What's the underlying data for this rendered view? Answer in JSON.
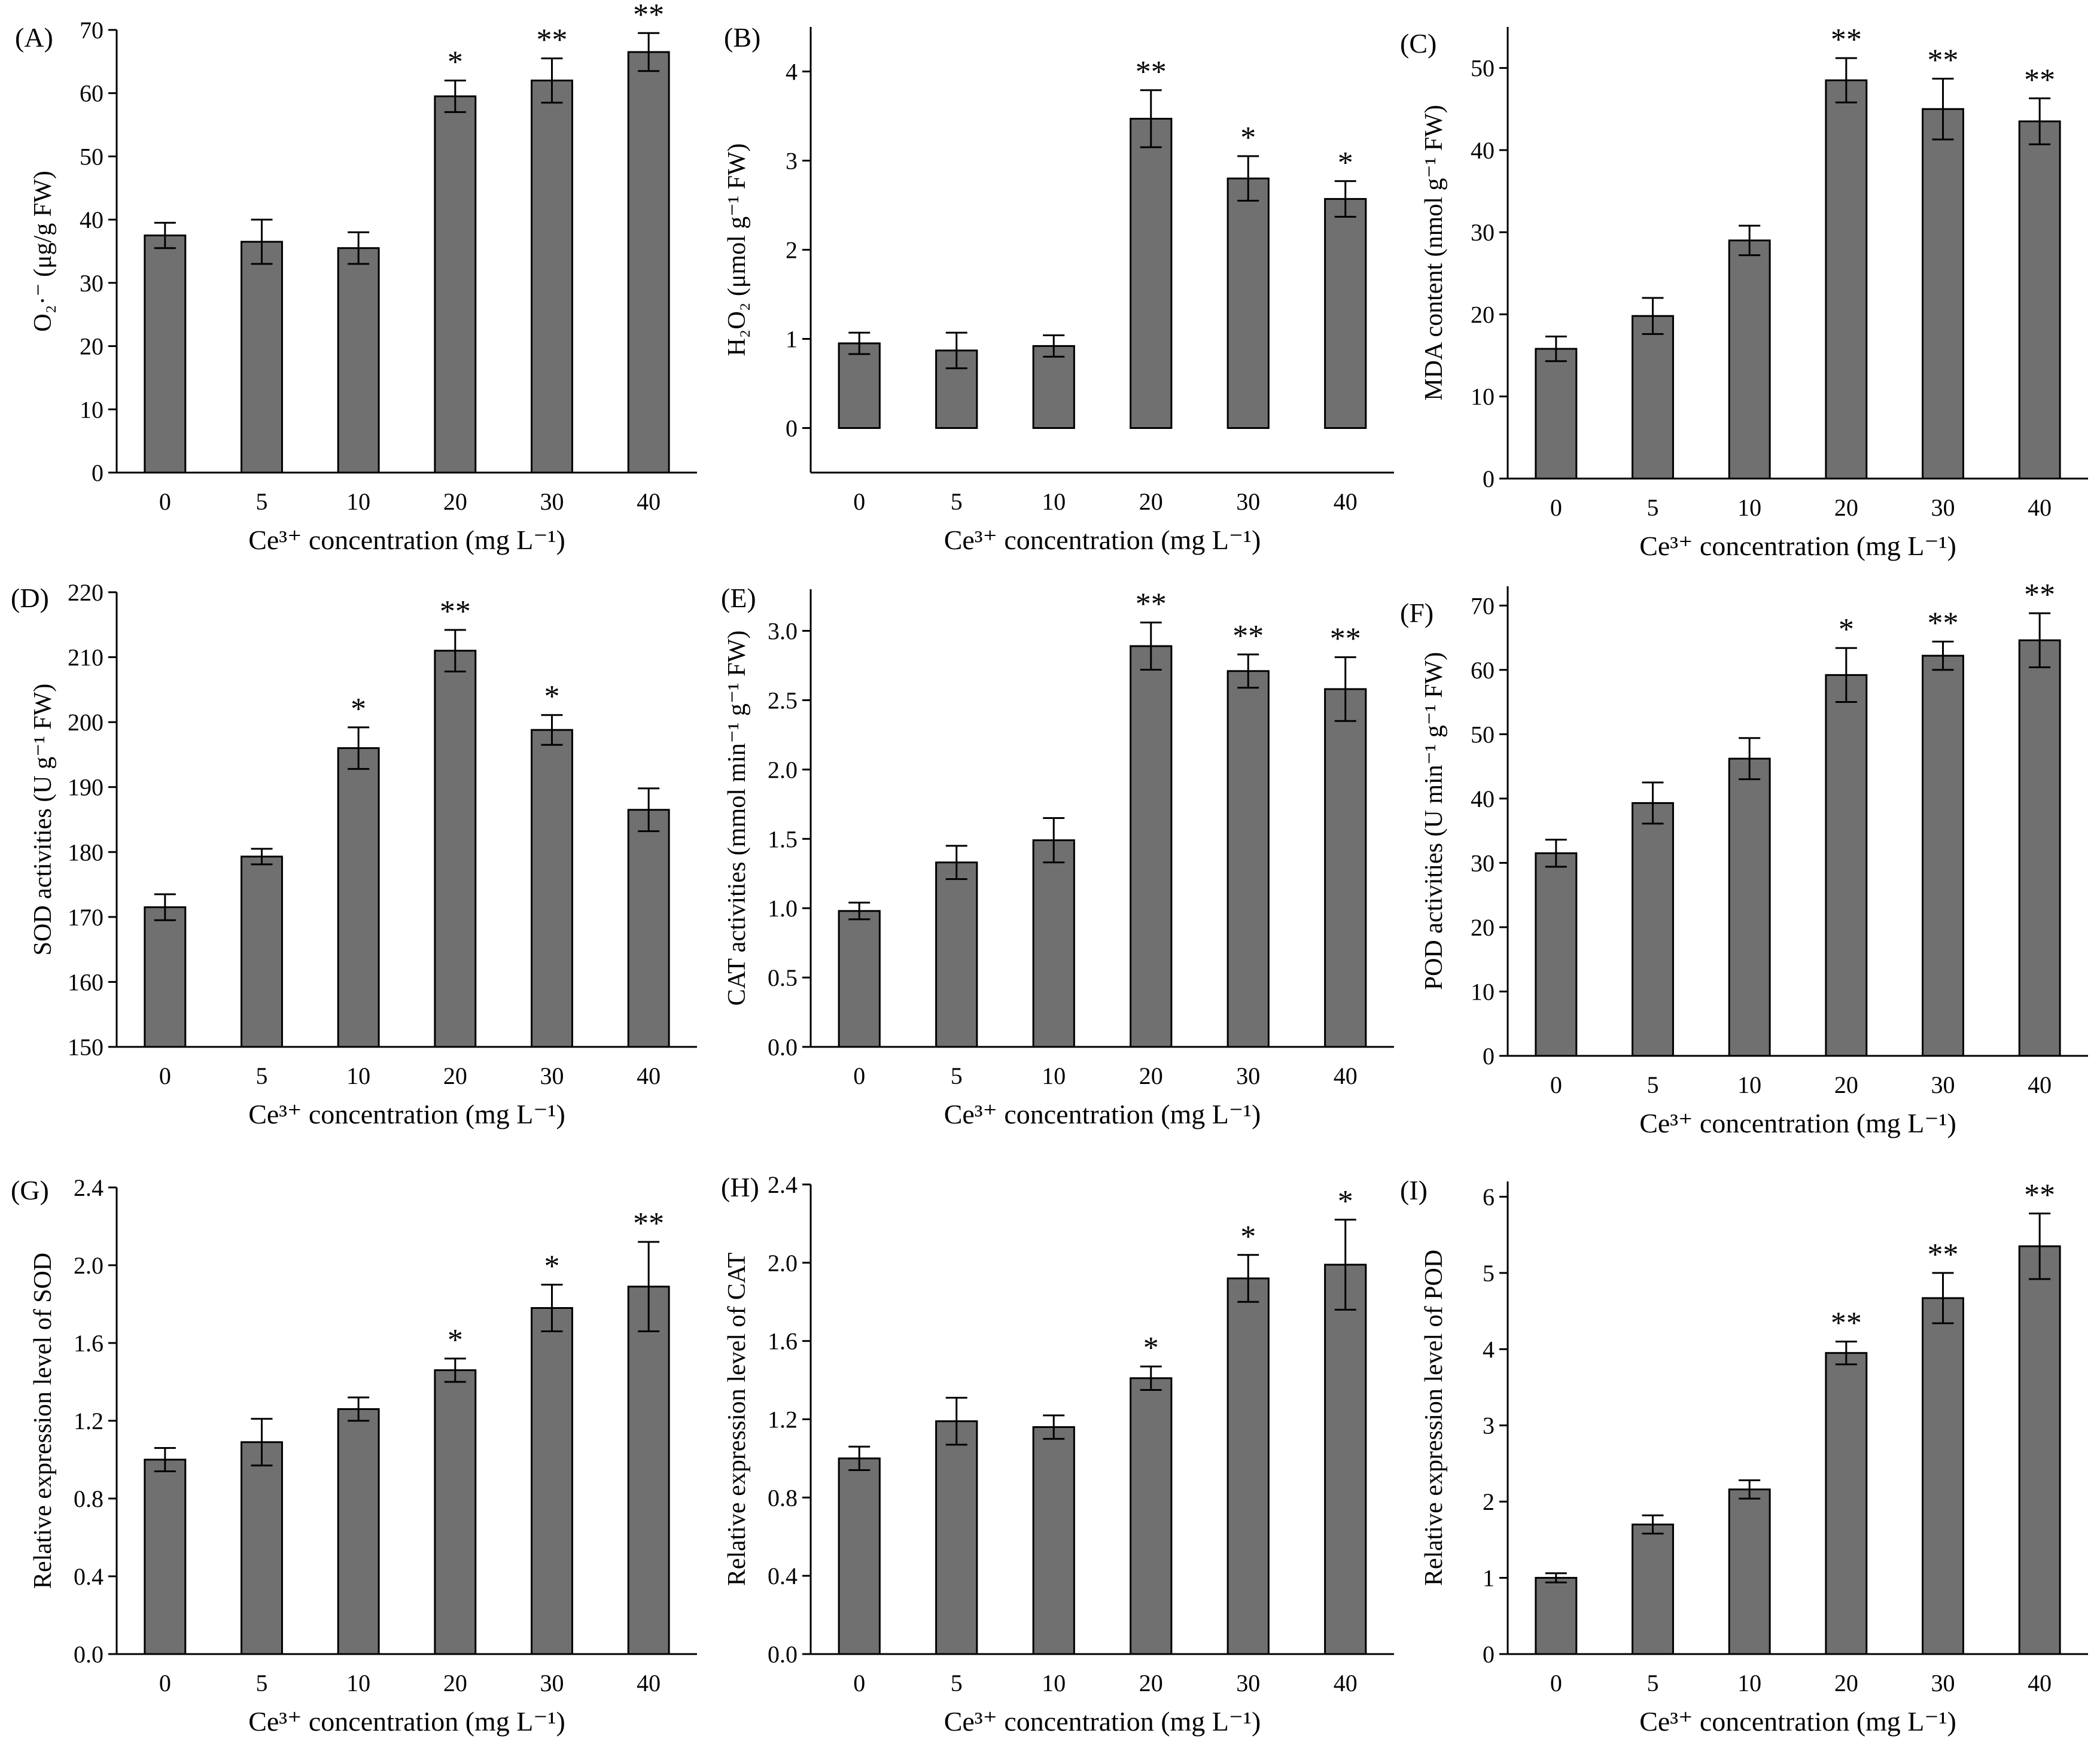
{
  "chart_data": [
    {
      "type": "bar",
      "label": "(A)",
      "categories": [
        "0",
        "5",
        "10",
        "20",
        "30",
        "40"
      ],
      "values": [
        37.5,
        36.5,
        35.5,
        59.5,
        62,
        66.5
      ],
      "errors": [
        2,
        3.5,
        2.5,
        2.5,
        3.5,
        3
      ],
      "significance": [
        "",
        "",
        "",
        "*",
        "**",
        "**"
      ],
      "ylim": [
        0,
        70
      ],
      "yticks": [
        0,
        10,
        20,
        30,
        40,
        50,
        60,
        70
      ],
      "ylabel": "O₂·⁻ (μg/g FW)",
      "xlabel": "Ce³⁺ concentration (mg L⁻¹)"
    },
    {
      "type": "bar",
      "label": "(B)",
      "categories": [
        "0",
        "5",
        "10",
        "20",
        "30",
        "40"
      ],
      "values": [
        0.95,
        0.87,
        0.92,
        3.47,
        2.8,
        2.57
      ],
      "errors": [
        0.12,
        0.2,
        0.12,
        0.32,
        0.25,
        0.2
      ],
      "significance": [
        "",
        "",
        "",
        "**",
        "*",
        "*"
      ],
      "ylim": [
        -0.5,
        4.5
      ],
      "yticks": [
        0,
        1,
        2,
        3,
        4
      ],
      "ylabel": "H₂O₂ (μmol g⁻¹ FW)",
      "xlabel": "Ce³⁺ concentration (mg L⁻¹)"
    },
    {
      "type": "bar",
      "label": "(C)",
      "categories": [
        "0",
        "5",
        "10",
        "20",
        "30",
        "40"
      ],
      "values": [
        15.8,
        19.8,
        29,
        48.5,
        45,
        43.5
      ],
      "errors": [
        1.5,
        2.2,
        1.8,
        2.7,
        3.7,
        2.8
      ],
      "significance": [
        "",
        "",
        "",
        "**",
        "**",
        "**"
      ],
      "ylim": [
        0,
        55
      ],
      "yticks": [
        0,
        10,
        20,
        30,
        40,
        50
      ],
      "ylabel": "MDA content (nmol g⁻¹ FW)",
      "xlabel": "Ce³⁺ concentration (mg L⁻¹)"
    },
    {
      "type": "bar",
      "label": "(D)",
      "categories": [
        "0",
        "5",
        "10",
        "20",
        "30",
        "40"
      ],
      "values": [
        171.5,
        179.3,
        196,
        211,
        198.8,
        186.5
      ],
      "errors": [
        2,
        1.2,
        3.2,
        3.2,
        2.3,
        3.3
      ],
      "significance": [
        "",
        "",
        "*",
        "**",
        "*",
        ""
      ],
      "ylim": [
        150,
        220
      ],
      "yticks": [
        150,
        160,
        170,
        180,
        190,
        200,
        210,
        220
      ],
      "ylabel": "SOD activities (U g⁻¹ FW)",
      "xlabel": "Ce³⁺ concentration (mg L⁻¹)"
    },
    {
      "type": "bar",
      "label": "(E)",
      "categories": [
        "0",
        "5",
        "10",
        "20",
        "30",
        "40"
      ],
      "values": [
        0.98,
        1.33,
        1.49,
        2.89,
        2.71,
        2.58
      ],
      "errors": [
        0.06,
        0.12,
        0.16,
        0.17,
        0.12,
        0.23
      ],
      "significance": [
        "",
        "",
        "",
        "**",
        "**",
        "**"
      ],
      "ylim": [
        0,
        3.3
      ],
      "yticks": [
        0,
        0.5,
        1.0,
        1.5,
        2.0,
        2.5,
        3.0
      ],
      "ylabel": "CAT activities (mmol min⁻¹ g⁻¹ FW)",
      "xlabel": "Ce³⁺ concentration (mg L⁻¹)"
    },
    {
      "type": "bar",
      "label": "(F)",
      "categories": [
        "0",
        "5",
        "10",
        "20",
        "30",
        "40"
      ],
      "values": [
        31.5,
        39.3,
        46.2,
        59.2,
        62.2,
        64.6
      ],
      "errors": [
        2.1,
        3.2,
        3.2,
        4.2,
        2.2,
        4.2
      ],
      "significance": [
        "",
        "",
        "",
        "*",
        "**",
        "**"
      ],
      "ylim": [
        0,
        73
      ],
      "yticks": [
        0,
        10,
        20,
        30,
        40,
        50,
        60,
        70
      ],
      "ylabel": "POD activities (U min⁻¹ g⁻¹ FW)",
      "xlabel": "Ce³⁺ concentration (mg L⁻¹)"
    },
    {
      "type": "bar",
      "label": "(G)",
      "categories": [
        "0",
        "5",
        "10",
        "20",
        "30",
        "40"
      ],
      "values": [
        1.0,
        1.09,
        1.26,
        1.46,
        1.78,
        1.89
      ],
      "errors": [
        0.06,
        0.12,
        0.06,
        0.06,
        0.12,
        0.23
      ],
      "significance": [
        "",
        "",
        "",
        "*",
        "*",
        "**"
      ],
      "ylim": [
        0,
        2.4
      ],
      "yticks": [
        0.0,
        0.4,
        0.8,
        1.2,
        1.6,
        2.0,
        2.4
      ],
      "ylabel": "Relative expression level of SOD",
      "xlabel": "Ce³⁺ concentration (mg L⁻¹)"
    },
    {
      "type": "bar",
      "label": "(H)",
      "categories": [
        "0",
        "5",
        "10",
        "20",
        "30",
        "40"
      ],
      "values": [
        1.0,
        1.19,
        1.16,
        1.41,
        1.92,
        1.99
      ],
      "errors": [
        0.06,
        0.12,
        0.06,
        0.06,
        0.12,
        0.23
      ],
      "significance": [
        "",
        "",
        "",
        "*",
        "*",
        "*"
      ],
      "ylim": [
        0,
        2.4
      ],
      "yticks": [
        0.0,
        0.4,
        0.8,
        1.2,
        1.6,
        2.0,
        2.4
      ],
      "ylabel": "Relative expression level of CAT",
      "xlabel": "Ce³⁺ concentration (mg L⁻¹)"
    },
    {
      "type": "bar",
      "label": "(I)",
      "categories": [
        "0",
        "5",
        "10",
        "20",
        "30",
        "40"
      ],
      "values": [
        1.0,
        1.7,
        2.16,
        3.95,
        4.67,
        5.35
      ],
      "errors": [
        0.06,
        0.12,
        0.12,
        0.15,
        0.33,
        0.43
      ],
      "significance": [
        "",
        "",
        "",
        "**",
        "**",
        "**"
      ],
      "ylim": [
        0,
        6.2
      ],
      "yticks": [
        0,
        1,
        2,
        3,
        4,
        5,
        6
      ],
      "ylabel": "Relative expression level of POD",
      "xlabel": "Ce³⁺ concentration (mg L⁻¹)"
    }
  ]
}
